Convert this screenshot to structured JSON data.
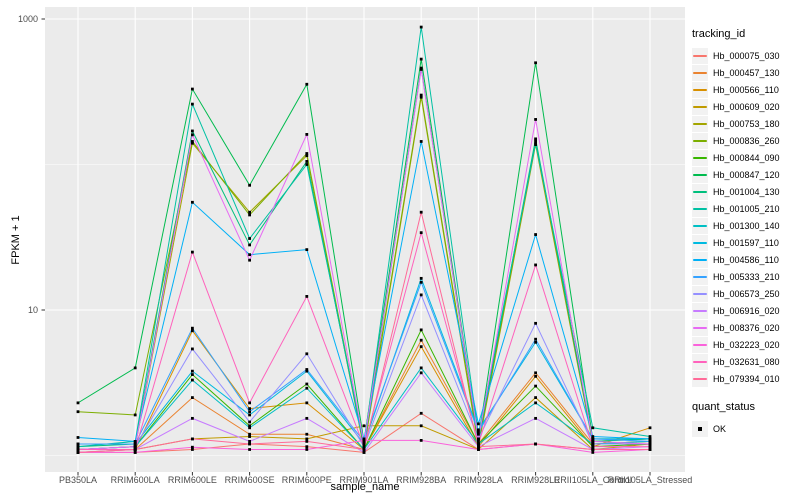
{
  "figure": {
    "background": "#FFFFFF",
    "panel_bg": "#EBEBEB",
    "grid_color": "#FFFFFF",
    "tick_color": "#333333",
    "axis_text_color": "#4D4D4D",
    "point_color": "#000000",
    "legend_key_bg": "#F2F2F2"
  },
  "legend": {
    "title": "tracking_id"
  },
  "legend2": {
    "title": "quant_status",
    "items": [
      {
        "label": "OK",
        "marker": "black-square-point"
      }
    ]
  },
  "chart_data": {
    "type": "line",
    "title": "",
    "xlabel": "sample_name",
    "ylabel": "FPKM + 1",
    "y_scale": "log10",
    "ylim_log10": [
      -0.11,
      3.08
    ],
    "legend_position": "right",
    "grid": "white major/minor on gray panel",
    "y_ticks": [
      {
        "label": "1000",
        "value": 1000
      },
      {
        "label": "10",
        "value": 10
      }
    ],
    "y_minor_breaks": [
      100,
      1
    ],
    "categories": [
      "PB350LA",
      "RRIM600LA",
      "RRIM600LE",
      "RRIM600SE",
      "RRIM600PE",
      "RRIM901LA",
      "RRIM928BA",
      "RRIM928LA",
      "RRIM928LE",
      "RRII105LA_Control",
      "RRII105LA_Stressed"
    ],
    "series": [
      {
        "name": "Hb_000075_030",
        "color": "#F8766D",
        "values": [
          1.05,
          1.05,
          1.1,
          1.2,
          1.15,
          1.05,
          1.95,
          1.1,
          1.2,
          1.1,
          1.1
        ]
      },
      {
        "name": "Hb_000457_130",
        "color": "#EA8331",
        "values": [
          1.1,
          1.1,
          2.5,
          1.4,
          1.4,
          1.1,
          6.2,
          1.2,
          3.7,
          1.2,
          1.25
        ]
      },
      {
        "name": "Hb_000566_110",
        "color": "#D89000",
        "values": [
          1.1,
          1.1,
          7.2,
          2.1,
          2.3,
          1.1,
          5.6,
          1.15,
          3.5,
          1.15,
          1.55
        ]
      },
      {
        "name": "Hb_000609_020",
        "color": "#C09B00",
        "values": [
          1.05,
          1.1,
          1.3,
          1.35,
          1.3,
          1.6,
          1.6,
          1.1,
          2.5,
          1.1,
          1.2
        ]
      },
      {
        "name": "Hb_000753_180",
        "color": "#A3A500",
        "values": [
          1.1,
          1.15,
          140,
          47,
          115,
          1.1,
          290,
          1.15,
          137,
          1.2,
          1.25
        ]
      },
      {
        "name": "Hb_000836_260",
        "color": "#7CAE00",
        "values": [
          2.0,
          1.9,
          144,
          45,
          119,
          1.15,
          300,
          1.2,
          145,
          1.25,
          1.3
        ]
      },
      {
        "name": "Hb_000844_090",
        "color": "#39B600",
        "values": [
          1.1,
          1.15,
          3.6,
          1.6,
          3.1,
          1.1,
          7.3,
          1.2,
          3.0,
          1.15,
          1.2
        ]
      },
      {
        "name": "Hb_000847_120",
        "color": "#00BB4E",
        "values": [
          2.3,
          4.0,
          330,
          72,
          356,
          1.25,
          530,
          1.3,
          500,
          1.3,
          1.3
        ]
      },
      {
        "name": "Hb_001004_130",
        "color": "#00BF7D",
        "values": [
          1.15,
          1.2,
          170,
          28,
          105,
          1.15,
          460,
          1.25,
          150,
          1.25,
          1.3
        ]
      },
      {
        "name": "Hb_001005_210",
        "color": "#00C1A3",
        "values": [
          1.15,
          1.25,
          260,
          31,
          100,
          1.2,
          880,
          1.4,
          140,
          1.55,
          1.35
        ]
      },
      {
        "name": "Hb_001300_140",
        "color": "#00BFC4",
        "values": [
          1.1,
          1.15,
          3.3,
          1.55,
          2.9,
          1.1,
          4.0,
          1.2,
          2.3,
          1.2,
          1.25
        ]
      },
      {
        "name": "Hb_001597_110",
        "color": "#00BAE0",
        "values": [
          1.2,
          1.2,
          3.8,
          1.9,
          3.8,
          1.2,
          16.5,
          1.5,
          6.0,
          1.3,
          1.3
        ]
      },
      {
        "name": "Hb_004586_110",
        "color": "#00B0F6",
        "values": [
          1.33,
          1.25,
          55,
          24,
          26,
          1.3,
          144,
          1.65,
          33,
          1.35,
          1.3
        ]
      },
      {
        "name": "Hb_005333_210",
        "color": "#35A2FF",
        "values": [
          1.2,
          1.2,
          7.5,
          2.0,
          3.9,
          1.25,
          15.5,
          1.45,
          6.3,
          1.3,
          1.25
        ]
      },
      {
        "name": "Hb_006573_250",
        "color": "#9590FF",
        "values": [
          1.1,
          1.15,
          5.4,
          1.7,
          5.0,
          1.15,
          12.7,
          1.3,
          8.1,
          1.2,
          1.2
        ]
      },
      {
        "name": "Hb_006916_020",
        "color": "#C77CFF",
        "values": [
          1.05,
          1.1,
          1.8,
          1.25,
          1.8,
          1.05,
          3.7,
          1.15,
          1.8,
          1.1,
          1.15
        ]
      },
      {
        "name": "Hb_008376_020",
        "color": "#E76BF3",
        "values": [
          1.1,
          1.15,
          160,
          22,
          161,
          1.2,
          450,
          1.3,
          204,
          1.25,
          1.2
        ]
      },
      {
        "name": "Hb_032223_020",
        "color": "#FA62DB",
        "values": [
          1.05,
          1.05,
          1.14,
          1.1,
          1.1,
          1.27,
          1.27,
          1.1,
          1.2,
          1.05,
          1.1
        ]
      },
      {
        "name": "Hb_032631_080",
        "color": "#FF62BC",
        "values": [
          1.1,
          1.1,
          25,
          2.3,
          12.4,
          1.15,
          34,
          1.2,
          20.4,
          1.15,
          1.15
        ]
      },
      {
        "name": "Hb_079394_010",
        "color": "#FF6A98",
        "values": [
          1.05,
          1.1,
          1.3,
          1.2,
          1.25,
          1.1,
          47,
          1.15,
          1.2,
          1.1,
          1.1
        ]
      }
    ]
  }
}
